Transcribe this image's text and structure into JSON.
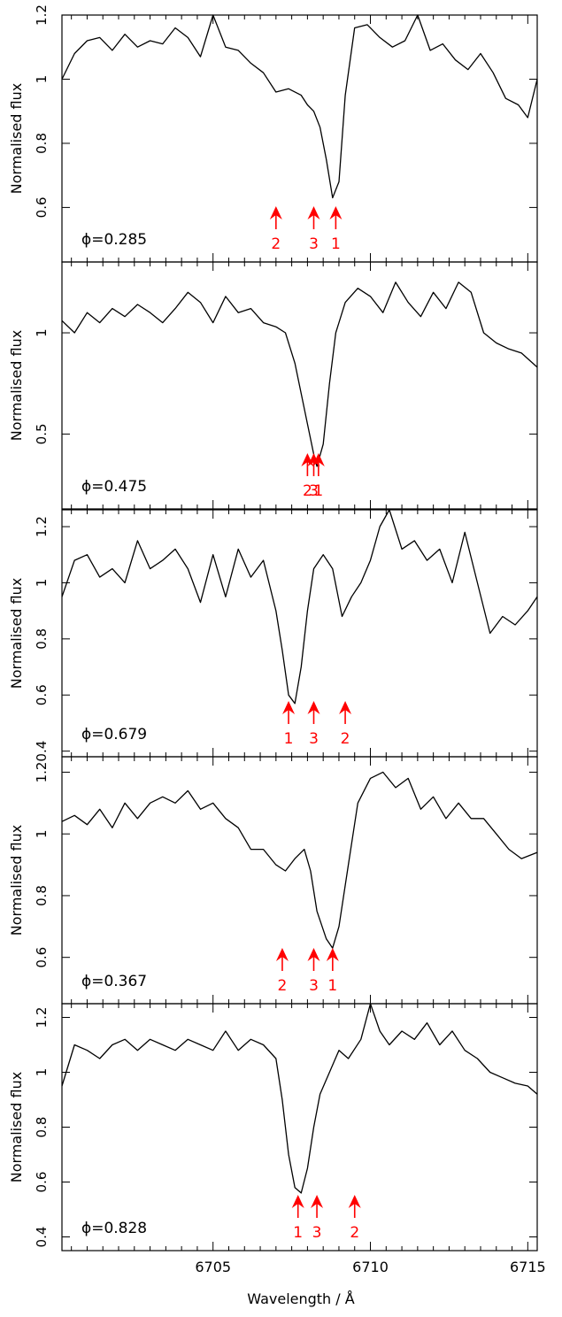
{
  "figure": {
    "xlabel": "Wavelength / Å",
    "ylabel": "Normalised flux",
    "line_color": "#000000",
    "marker_color": "#ff0000"
  },
  "chart_data": [
    {
      "type": "line",
      "phase_label": "ϕ=0.285",
      "xlim": [
        6700.2,
        6715.3
      ],
      "ylim": [
        0.43,
        1.2
      ],
      "yticks": [
        0.6,
        0.8,
        1,
        1.2
      ],
      "ytick_labels": [
        "0.6",
        "0.8",
        "1",
        "1.2"
      ],
      "markers": [
        {
          "label": "2",
          "x": 6707.0
        },
        {
          "label": "3",
          "x": 6708.2
        },
        {
          "label": "1",
          "x": 6708.9
        }
      ],
      "series": [
        {
          "x": [
            6700.2,
            6700.6,
            6701.0,
            6701.4,
            6701.8,
            6702.2,
            6702.6,
            6703.0,
            6703.4,
            6703.8,
            6704.2,
            6704.6,
            6705.0,
            6705.4,
            6705.8,
            6706.2,
            6706.6,
            6707.0,
            6707.4,
            6707.8,
            6708.0,
            6708.2,
            6708.4,
            6708.6,
            6708.8,
            6709.0,
            6709.2,
            6709.5,
            6709.9,
            6710.3,
            6710.7,
            6711.1,
            6711.5,
            6711.9,
            6712.3,
            6712.7,
            6713.1,
            6713.5,
            6713.9,
            6714.3,
            6714.7,
            6715.0,
            6715.3
          ],
          "y": [
            1.0,
            1.08,
            1.12,
            1.13,
            1.09,
            1.14,
            1.1,
            1.12,
            1.11,
            1.16,
            1.13,
            1.07,
            1.2,
            1.1,
            1.09,
            1.05,
            1.02,
            0.96,
            0.97,
            0.95,
            0.92,
            0.9,
            0.85,
            0.75,
            0.63,
            0.68,
            0.95,
            1.16,
            1.17,
            1.13,
            1.1,
            1.12,
            1.2,
            1.09,
            1.11,
            1.06,
            1.03,
            1.08,
            1.02,
            0.94,
            0.92,
            0.88,
            1.0
          ]
        }
      ]
    },
    {
      "type": "line",
      "phase_label": "ϕ=0.475",
      "xlim": [
        6700.2,
        6715.3
      ],
      "ylim": [
        0.13,
        1.35
      ],
      "yticks": [
        0.5,
        1
      ],
      "ytick_labels": [
        "0.5",
        "1"
      ],
      "markers": [
        {
          "label": "2",
          "x": 6708.0
        },
        {
          "label": "3",
          "x": 6708.2
        },
        {
          "label": "1",
          "x": 6708.35
        }
      ],
      "series": [
        {
          "x": [
            6700.2,
            6700.6,
            6701.0,
            6701.4,
            6701.8,
            6702.2,
            6702.6,
            6703.0,
            6703.4,
            6703.8,
            6704.2,
            6704.6,
            6705.0,
            6705.4,
            6705.8,
            6706.2,
            6706.6,
            6707.0,
            6707.3,
            6707.6,
            6707.8,
            6708.0,
            6708.2,
            6708.3,
            6708.5,
            6708.7,
            6708.9,
            6709.2,
            6709.6,
            6710.0,
            6710.4,
            6710.8,
            6711.2,
            6711.6,
            6712.0,
            6712.4,
            6712.8,
            6713.2,
            6713.6,
            6714.0,
            6714.4,
            6714.8,
            6715.3
          ],
          "y": [
            1.06,
            1.0,
            1.1,
            1.05,
            1.12,
            1.08,
            1.14,
            1.1,
            1.05,
            1.12,
            1.2,
            1.15,
            1.05,
            1.18,
            1.1,
            1.12,
            1.05,
            1.03,
            1.0,
            0.85,
            0.7,
            0.55,
            0.4,
            0.34,
            0.45,
            0.75,
            1.0,
            1.15,
            1.22,
            1.18,
            1.1,
            1.25,
            1.15,
            1.08,
            1.2,
            1.12,
            1.25,
            1.2,
            1.0,
            0.95,
            0.92,
            0.9,
            0.83
          ]
        }
      ]
    },
    {
      "type": "line",
      "phase_label": "ϕ=0.679",
      "xlim": [
        6700.2,
        6715.3
      ],
      "ylim": [
        0.38,
        1.26
      ],
      "yticks": [
        0.4,
        0.6,
        0.8,
        1,
        1.2
      ],
      "ytick_labels": [
        "0.4",
        "0.6",
        "0.8",
        "1",
        "1.2"
      ],
      "markers": [
        {
          "label": "1",
          "x": 6707.4
        },
        {
          "label": "3",
          "x": 6708.2
        },
        {
          "label": "2",
          "x": 6709.2
        }
      ],
      "series": [
        {
          "x": [
            6700.2,
            6700.6,
            6701.0,
            6701.4,
            6701.8,
            6702.2,
            6702.6,
            6703.0,
            6703.4,
            6703.8,
            6704.2,
            6704.6,
            6705.0,
            6705.4,
            6705.8,
            6706.2,
            6706.6,
            6707.0,
            6707.2,
            6707.4,
            6707.6,
            6707.8,
            6708.0,
            6708.2,
            6708.5,
            6708.8,
            6709.1,
            6709.4,
            6709.7,
            6710.0,
            6710.3,
            6710.6,
            6711.0,
            6711.4,
            6711.8,
            6712.2,
            6712.6,
            6713.0,
            6713.4,
            6713.8,
            6714.2,
            6714.6,
            6715.0,
            6715.3
          ],
          "y": [
            0.95,
            1.08,
            1.1,
            1.02,
            1.05,
            1.0,
            1.15,
            1.05,
            1.08,
            1.12,
            1.05,
            0.93,
            1.1,
            0.95,
            1.12,
            1.02,
            1.08,
            0.9,
            0.76,
            0.6,
            0.57,
            0.7,
            0.9,
            1.05,
            1.1,
            1.05,
            0.88,
            0.95,
            1.0,
            1.08,
            1.2,
            1.26,
            1.12,
            1.15,
            1.08,
            1.12,
            1.0,
            1.18,
            1.0,
            0.82,
            0.88,
            0.85,
            0.9,
            0.95
          ]
        }
      ]
    },
    {
      "type": "line",
      "phase_label": "ϕ=0.367",
      "xlim": [
        6700.2,
        6715.3
      ],
      "ylim": [
        0.45,
        1.25
      ],
      "yticks": [
        0.6,
        0.8,
        1,
        1.2
      ],
      "ytick_labels": [
        "0.6",
        "0.8",
        "1",
        "1.2"
      ],
      "markers": [
        {
          "label": "2",
          "x": 6707.2
        },
        {
          "label": "3",
          "x": 6708.2
        },
        {
          "label": "1",
          "x": 6708.8
        }
      ],
      "series": [
        {
          "x": [
            6700.2,
            6700.6,
            6701.0,
            6701.4,
            6701.8,
            6702.2,
            6702.6,
            6703.0,
            6703.4,
            6703.8,
            6704.2,
            6704.6,
            6705.0,
            6705.4,
            6705.8,
            6706.2,
            6706.6,
            6707.0,
            6707.3,
            6707.6,
            6707.9,
            6708.1,
            6708.3,
            6708.6,
            6708.8,
            6709.0,
            6709.3,
            6709.6,
            6710.0,
            6710.4,
            6710.8,
            6711.2,
            6711.6,
            6712.0,
            6712.4,
            6712.8,
            6713.2,
            6713.6,
            6714.0,
            6714.4,
            6714.8,
            6715.3
          ],
          "y": [
            1.04,
            1.06,
            1.03,
            1.08,
            1.02,
            1.1,
            1.05,
            1.1,
            1.12,
            1.1,
            1.14,
            1.08,
            1.1,
            1.05,
            1.02,
            0.95,
            0.95,
            0.9,
            0.88,
            0.92,
            0.95,
            0.88,
            0.75,
            0.66,
            0.63,
            0.7,
            0.9,
            1.1,
            1.18,
            1.2,
            1.15,
            1.18,
            1.08,
            1.12,
            1.05,
            1.1,
            1.05,
            1.05,
            1.0,
            0.95,
            0.92,
            0.94
          ]
        }
      ]
    },
    {
      "type": "line",
      "phase_label": "ϕ=0.828",
      "xlim": [
        6700.2,
        6715.3
      ],
      "ylim": [
        0.35,
        1.25
      ],
      "yticks": [
        0.4,
        0.6,
        0.8,
        1,
        1.2
      ],
      "ytick_labels": [
        "0.4",
        "0.6",
        "0.8",
        "1",
        "1.2"
      ],
      "xticks": [
        6705,
        6710,
        6715
      ],
      "xtick_labels": [
        "6705",
        "6710",
        "6715"
      ],
      "markers": [
        {
          "label": "1",
          "x": 6707.7
        },
        {
          "label": "3",
          "x": 6708.3
        },
        {
          "label": "2",
          "x": 6709.5
        }
      ],
      "series": [
        {
          "x": [
            6700.2,
            6700.6,
            6701.0,
            6701.4,
            6701.8,
            6702.2,
            6702.6,
            6703.0,
            6703.4,
            6703.8,
            6704.2,
            6704.6,
            6705.0,
            6705.4,
            6705.8,
            6706.2,
            6706.6,
            6707.0,
            6707.2,
            6707.4,
            6707.6,
            6707.8,
            6708.0,
            6708.2,
            6708.4,
            6708.7,
            6709.0,
            6709.3,
            6709.7,
            6710.0,
            6710.3,
            6710.6,
            6711.0,
            6711.4,
            6711.8,
            6712.2,
            6712.6,
            6713.0,
            6713.4,
            6713.8,
            6714.2,
            6714.6,
            6715.0,
            6715.3
          ],
          "y": [
            0.95,
            1.1,
            1.08,
            1.05,
            1.1,
            1.12,
            1.08,
            1.12,
            1.1,
            1.08,
            1.12,
            1.1,
            1.08,
            1.15,
            1.08,
            1.12,
            1.1,
            1.05,
            0.9,
            0.7,
            0.58,
            0.56,
            0.65,
            0.8,
            0.92,
            1.0,
            1.08,
            1.05,
            1.12,
            1.25,
            1.15,
            1.1,
            1.15,
            1.12,
            1.18,
            1.1,
            1.15,
            1.08,
            1.05,
            1.0,
            0.98,
            0.96,
            0.95,
            0.92
          ]
        }
      ]
    }
  ]
}
